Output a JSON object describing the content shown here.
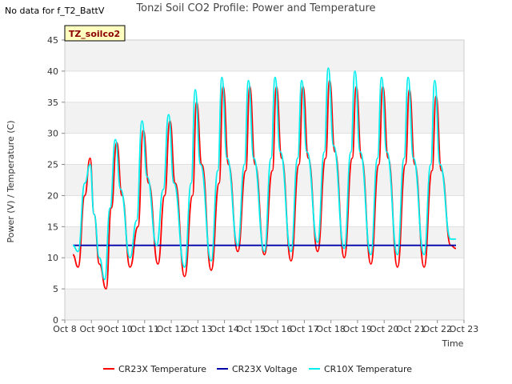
{
  "header": {
    "no_data_text": "No data for f_T2_BattV"
  },
  "chart_data": {
    "type": "line",
    "title": "Tonzi Soil CO2 Profile: Power and Temperature",
    "xlabel": "Time",
    "ylabel": "Power (V) / Temperature (C)",
    "ylim": [
      0,
      45
    ],
    "yticks": [
      0,
      5,
      10,
      15,
      20,
      25,
      30,
      35,
      40,
      45
    ],
    "xlim": [
      8,
      23
    ],
    "xticks": [
      8,
      9,
      10,
      11,
      12,
      13,
      14,
      15,
      16,
      17,
      18,
      19,
      20,
      21,
      22,
      23
    ],
    "xtick_labels": [
      "Oct 8",
      "Oct 9",
      "Oct 10",
      "Oct 11",
      "Oct 12",
      "Oct 13",
      "Oct 14",
      "Oct 15",
      "Oct 16",
      "Oct 17",
      "Oct 18",
      "Oct 19",
      "Oct 20",
      "Oct 21",
      "Oct 22",
      "Oct 23"
    ],
    "grid": "horizontal bands",
    "legend_position": "bottom-center",
    "annotation": "TZ_soilco2",
    "series": [
      {
        "name": "CR23X Temperature",
        "color": "#ff0000",
        "x": [
          8.3,
          8.5,
          8.75,
          8.95,
          9.1,
          9.3,
          9.55,
          9.75,
          9.95,
          10.15,
          10.45,
          10.75,
          10.95,
          11.15,
          11.5,
          11.75,
          11.95,
          12.15,
          12.5,
          12.8,
          12.95,
          13.15,
          13.5,
          13.8,
          13.95,
          14.15,
          14.5,
          14.8,
          14.95,
          15.15,
          15.5,
          15.8,
          15.95,
          16.15,
          16.5,
          16.8,
          16.95,
          17.15,
          17.5,
          17.8,
          17.95,
          18.15,
          18.5,
          18.8,
          18.95,
          19.15,
          19.5,
          19.8,
          19.95,
          20.15,
          20.5,
          20.8,
          20.95,
          21.15,
          21.5,
          21.8,
          21.95,
          22.15,
          22.5,
          22.7
        ],
        "y": [
          10.5,
          8.5,
          20.0,
          26.0,
          17.0,
          9.0,
          5.0,
          18.0,
          28.5,
          20.0,
          8.5,
          15.0,
          30.5,
          22.0,
          9.0,
          20.0,
          32.0,
          22.0,
          7.0,
          20.0,
          35.0,
          25.0,
          8.0,
          22.0,
          37.5,
          25.0,
          11.0,
          24.0,
          37.5,
          25.0,
          10.5,
          24.0,
          37.5,
          26.0,
          9.5,
          25.0,
          37.5,
          26.0,
          11.0,
          26.0,
          38.5,
          27.0,
          10.0,
          26.0,
          37.5,
          26.0,
          9.0,
          25.0,
          37.5,
          26.0,
          8.5,
          25.0,
          37.0,
          25.0,
          8.5,
          24.0,
          36.0,
          24.0,
          12.0,
          11.5
        ]
      },
      {
        "name": "CR23X Voltage",
        "color": "#0000aa",
        "x": [
          8.3,
          22.7
        ],
        "y": [
          12.0,
          12.0
        ]
      },
      {
        "name": "CR10X Temperature",
        "color": "#00eeee",
        "x": [
          8.3,
          8.5,
          8.75,
          8.95,
          9.1,
          9.3,
          9.5,
          9.7,
          9.9,
          10.1,
          10.45,
          10.7,
          10.9,
          11.1,
          11.45,
          11.7,
          11.9,
          12.1,
          12.5,
          12.75,
          12.9,
          13.1,
          13.5,
          13.75,
          13.9,
          14.1,
          14.5,
          14.75,
          14.9,
          15.1,
          15.5,
          15.75,
          15.9,
          16.1,
          16.5,
          16.75,
          16.9,
          17.1,
          17.5,
          17.75,
          17.9,
          18.1,
          18.5,
          18.75,
          18.9,
          19.1,
          19.5,
          19.75,
          19.9,
          20.1,
          20.5,
          20.75,
          20.9,
          21.1,
          21.5,
          21.75,
          21.9,
          22.1,
          22.5,
          22.7
        ],
        "y": [
          12.0,
          11.0,
          22.0,
          25.0,
          17.0,
          10.0,
          6.5,
          18.0,
          29.0,
          21.0,
          10.0,
          16.0,
          32.0,
          23.0,
          12.0,
          21.0,
          33.0,
          22.0,
          8.5,
          22.0,
          37.0,
          25.0,
          9.5,
          24.0,
          39.0,
          26.0,
          12.0,
          25.0,
          38.5,
          26.0,
          11.0,
          26.0,
          39.0,
          27.0,
          11.0,
          26.0,
          38.5,
          27.0,
          12.5,
          27.0,
          40.5,
          28.0,
          11.5,
          27.0,
          40.0,
          27.0,
          10.5,
          26.0,
          39.0,
          27.0,
          10.5,
          26.0,
          39.0,
          26.0,
          10.5,
          25.0,
          38.5,
          25.0,
          13.0,
          13.0
        ]
      }
    ]
  }
}
